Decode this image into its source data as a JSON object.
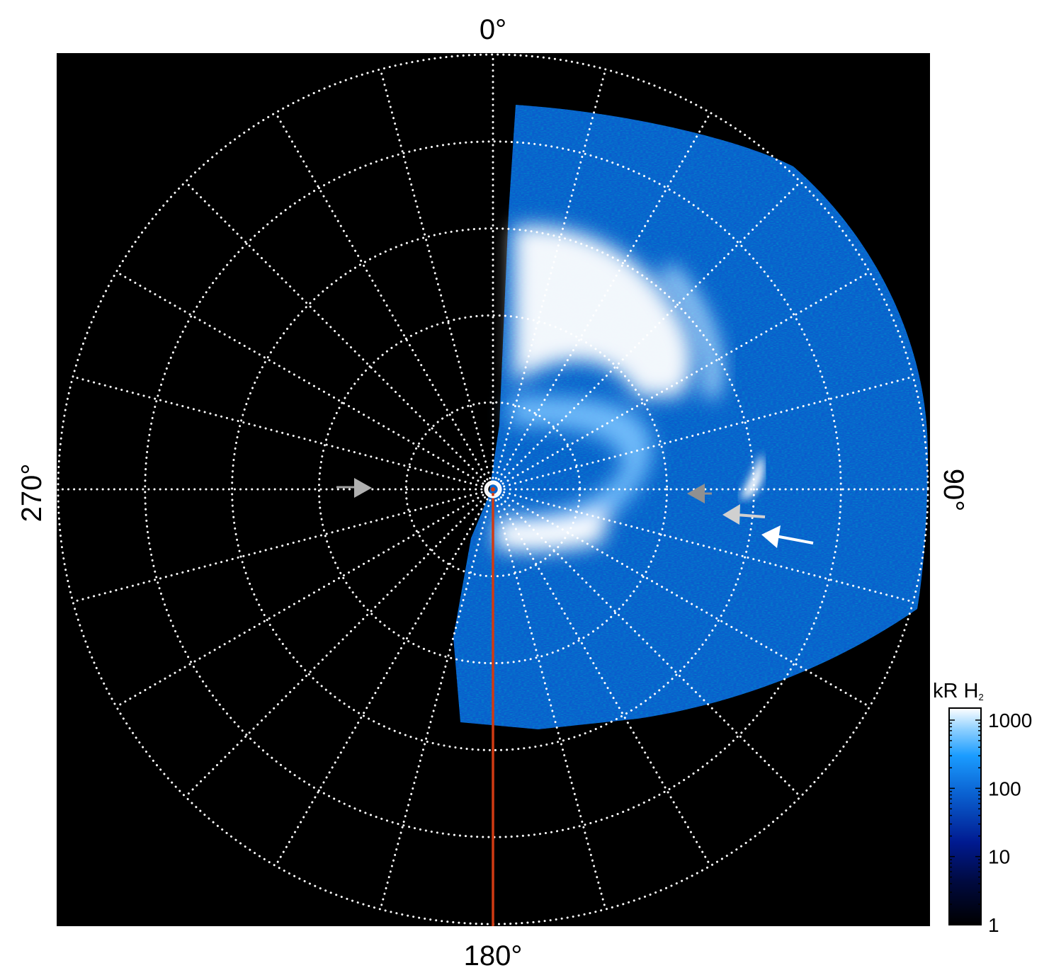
{
  "chart_data": {
    "type": "heatmap",
    "projection": "polar",
    "angle_labels": {
      "top": "0°",
      "right": "90°",
      "bottom": "180°",
      "left": "270°"
    },
    "radial_grid_rings": 5,
    "angular_grid_step_deg": 15,
    "grid": true,
    "colorbar": {
      "title": "kR H",
      "title_subscript": "2",
      "scale": "log",
      "ticks": [
        "1",
        "10",
        "100",
        "1000"
      ],
      "range": [
        1,
        1500
      ],
      "colors": [
        "#000000",
        "#000a40",
        "#001a90",
        "#0a60d0",
        "#1a9cff",
        "#8ccfff",
        "#ffffff"
      ]
    },
    "reference_line_color": "#d03a12",
    "arrows": [
      {
        "color": "#b0b0b0",
        "direction": "right"
      },
      {
        "color": "#909090",
        "direction": "left"
      },
      {
        "color": "#d0d0d0",
        "direction": "left"
      },
      {
        "color": "#ffffff",
        "direction": "left"
      }
    ]
  }
}
